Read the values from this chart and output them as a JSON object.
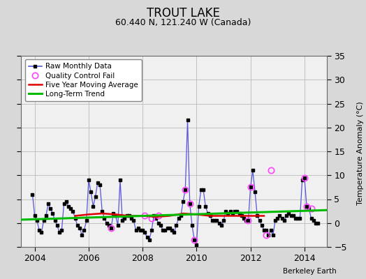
{
  "title": "TROUT LAKE",
  "subtitle": "60.440 N, 121.240 W (Canada)",
  "ylabel_right": "Temperature Anomaly (°C)",
  "credit": "Berkeley Earth",
  "ylim": [
    -5,
    35
  ],
  "yticks": [
    -5,
    0,
    5,
    10,
    15,
    20,
    25,
    30,
    35
  ],
  "xlim": [
    2003.5,
    2014.83
  ],
  "xticks": [
    2004,
    2006,
    2008,
    2010,
    2012,
    2014
  ],
  "bg_color": "#d8d8d8",
  "plot_bg_color": "#f0f0f0",
  "raw_x": [
    2003.917,
    2004.0,
    2004.083,
    2004.167,
    2004.25,
    2004.333,
    2004.417,
    2004.5,
    2004.583,
    2004.667,
    2004.75,
    2004.833,
    2004.917,
    2005.0,
    2005.083,
    2005.167,
    2005.25,
    2005.333,
    2005.417,
    2005.5,
    2005.583,
    2005.667,
    2005.75,
    2005.833,
    2005.917,
    2006.0,
    2006.083,
    2006.167,
    2006.25,
    2006.333,
    2006.417,
    2006.5,
    2006.583,
    2006.667,
    2006.75,
    2006.833,
    2006.917,
    2007.0,
    2007.083,
    2007.167,
    2007.25,
    2007.333,
    2007.417,
    2007.5,
    2007.583,
    2007.667,
    2007.75,
    2007.833,
    2007.917,
    2008.0,
    2008.083,
    2008.167,
    2008.25,
    2008.333,
    2008.417,
    2008.5,
    2008.583,
    2008.667,
    2008.75,
    2008.833,
    2008.917,
    2009.0,
    2009.083,
    2009.167,
    2009.25,
    2009.333,
    2009.417,
    2009.5,
    2009.583,
    2009.667,
    2009.75,
    2009.833,
    2009.917,
    2010.0,
    2010.083,
    2010.167,
    2010.25,
    2010.333,
    2010.417,
    2010.5,
    2010.583,
    2010.667,
    2010.75,
    2010.833,
    2010.917,
    2011.0,
    2011.083,
    2011.167,
    2011.25,
    2011.333,
    2011.417,
    2011.5,
    2011.583,
    2011.667,
    2011.75,
    2011.833,
    2011.917,
    2012.0,
    2012.083,
    2012.167,
    2012.25,
    2012.333,
    2012.417,
    2012.5,
    2012.583,
    2012.667,
    2012.75,
    2012.833,
    2012.917,
    2013.0,
    2013.083,
    2013.167,
    2013.25,
    2013.333,
    2013.417,
    2013.5,
    2013.583,
    2013.667,
    2013.75,
    2013.833,
    2013.917,
    2014.0,
    2014.083,
    2014.167,
    2014.25,
    2014.333,
    2014.417,
    2014.5
  ],
  "raw_y": [
    6.0,
    1.5,
    0.5,
    -1.5,
    -2.0,
    0.5,
    1.5,
    4.0,
    3.0,
    2.0,
    0.5,
    -0.5,
    -2.0,
    -1.5,
    4.0,
    4.5,
    3.5,
    3.0,
    2.5,
    1.0,
    -0.5,
    -1.0,
    -2.5,
    -1.5,
    0.5,
    9.0,
    6.5,
    3.5,
    5.5,
    8.5,
    8.0,
    2.5,
    1.0,
    0.0,
    -0.5,
    -1.0,
    2.0,
    1.5,
    -0.5,
    9.0,
    0.5,
    1.0,
    1.5,
    1.5,
    1.0,
    0.5,
    -1.5,
    -1.0,
    -1.5,
    -1.5,
    -2.0,
    -3.0,
    -3.5,
    -1.5,
    1.5,
    1.0,
    0.0,
    -0.5,
    -1.5,
    -1.5,
    -1.0,
    -1.0,
    -1.5,
    -2.0,
    -0.5,
    1.0,
    1.5,
    4.5,
    7.0,
    21.5,
    4.0,
    -0.5,
    -3.5,
    -4.5,
    3.5,
    7.0,
    7.0,
    3.5,
    2.0,
    1.5,
    0.5,
    0.5,
    0.5,
    0.0,
    -0.5,
    0.5,
    2.5,
    2.0,
    2.5,
    2.0,
    2.5,
    2.5,
    2.0,
    1.5,
    1.0,
    0.5,
    0.5,
    7.5,
    11.0,
    6.5,
    1.5,
    0.5,
    -0.5,
    -1.5,
    -1.5,
    -2.5,
    -1.5,
    -2.5,
    0.5,
    1.0,
    1.5,
    1.0,
    0.5,
    1.5,
    2.0,
    1.5,
    1.5,
    1.0,
    1.0,
    1.0,
    9.0,
    9.5,
    3.5,
    3.0,
    1.0,
    0.5,
    0.0,
    0.0
  ],
  "qc_fail_x": [
    2006.833,
    2008.083,
    2008.333,
    2008.583,
    2009.583,
    2009.75,
    2009.917,
    2011.917,
    2012.0,
    2012.583,
    2012.75,
    2014.0,
    2014.083,
    2014.25
  ],
  "qc_fail_y": [
    -1.0,
    1.5,
    1.0,
    1.5,
    7.0,
    4.0,
    -3.5,
    0.5,
    7.5,
    -2.5,
    11.0,
    9.5,
    3.5,
    3.0
  ],
  "moving_avg_x": [
    2005.5,
    2006.0,
    2006.5,
    2007.0,
    2007.5,
    2008.0,
    2008.5,
    2009.0,
    2009.5,
    2010.0,
    2010.5,
    2011.0,
    2011.5,
    2012.0,
    2012.5
  ],
  "moving_avg_y": [
    1.5,
    1.8,
    2.0,
    1.8,
    1.5,
    1.5,
    1.3,
    1.5,
    2.0,
    1.8,
    1.5,
    1.5,
    1.5,
    1.5,
    1.5
  ],
  "trend_x": [
    2003.5,
    2014.83
  ],
  "trend_y": [
    0.7,
    2.7
  ],
  "raw_line_color": "#5555dd",
  "raw_dot_color": "#000000",
  "qc_color": "#ff44ff",
  "moving_avg_color": "#dd0000",
  "trend_color": "#00bb00",
  "title_fontsize": 12,
  "subtitle_fontsize": 9,
  "tick_fontsize": 9,
  "legend_fontsize": 7.5,
  "credit_fontsize": 7.5
}
